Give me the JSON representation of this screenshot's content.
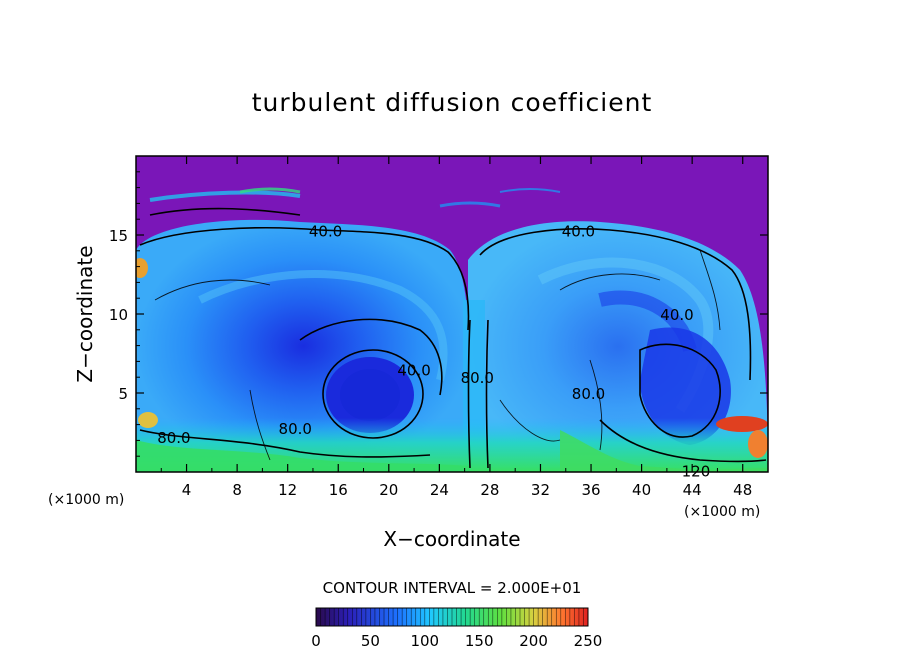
{
  "chart_data": {
    "type": "heatmap",
    "title": "turbulent diffusion coefficient",
    "xlabel": "X−coordinate",
    "ylabel": "Z−coordinate",
    "x_unit_left": "(×1000 m)",
    "x_unit_right": "(×1000 m)",
    "xlim": [
      0,
      50
    ],
    "ylim": [
      0,
      20
    ],
    "xticks": [
      "4",
      "8",
      "12",
      "16",
      "20",
      "24",
      "28",
      "32",
      "36",
      "40",
      "44",
      "48"
    ],
    "xtick_values": [
      4,
      8,
      12,
      16,
      20,
      24,
      28,
      32,
      36,
      40,
      44,
      48
    ],
    "yticks": [
      "5",
      "10",
      "15"
    ],
    "ytick_values": [
      5,
      10,
      15
    ],
    "contour_interval_text": "CONTOUR INTERVAL = 2.000E+01",
    "contour_labels": [
      {
        "text": "40.0",
        "x": 15.0,
        "z": 15.3
      },
      {
        "text": "40.0",
        "x": 35.0,
        "z": 15.3
      },
      {
        "text": "40.0",
        "x": 22.0,
        "z": 6.5
      },
      {
        "text": "80.0",
        "x": 27.0,
        "z": 6.0
      },
      {
        "text": "80.0",
        "x": 12.6,
        "z": 2.8
      },
      {
        "text": "80.0",
        "x": 3.0,
        "z": 2.2
      },
      {
        "text": "80.0",
        "x": 35.8,
        "z": 5.0
      },
      {
        "text": "40.0",
        "x": 42.8,
        "z": 10.0
      },
      {
        "text": "120",
        "x": 44.3,
        "z": 0.1
      }
    ],
    "colorbar": {
      "min": 0,
      "max": 250,
      "tick_labels": [
        "0",
        "50",
        "100",
        "150",
        "200",
        "250"
      ],
      "tick_values": [
        0,
        50,
        100,
        150,
        200,
        250
      ]
    },
    "colors": {
      "background_field": "#7a16b8",
      "low": "#1030e0",
      "mid": "#20c8ff",
      "high_green": "#30e060",
      "high_red": "#e03010"
    }
  }
}
